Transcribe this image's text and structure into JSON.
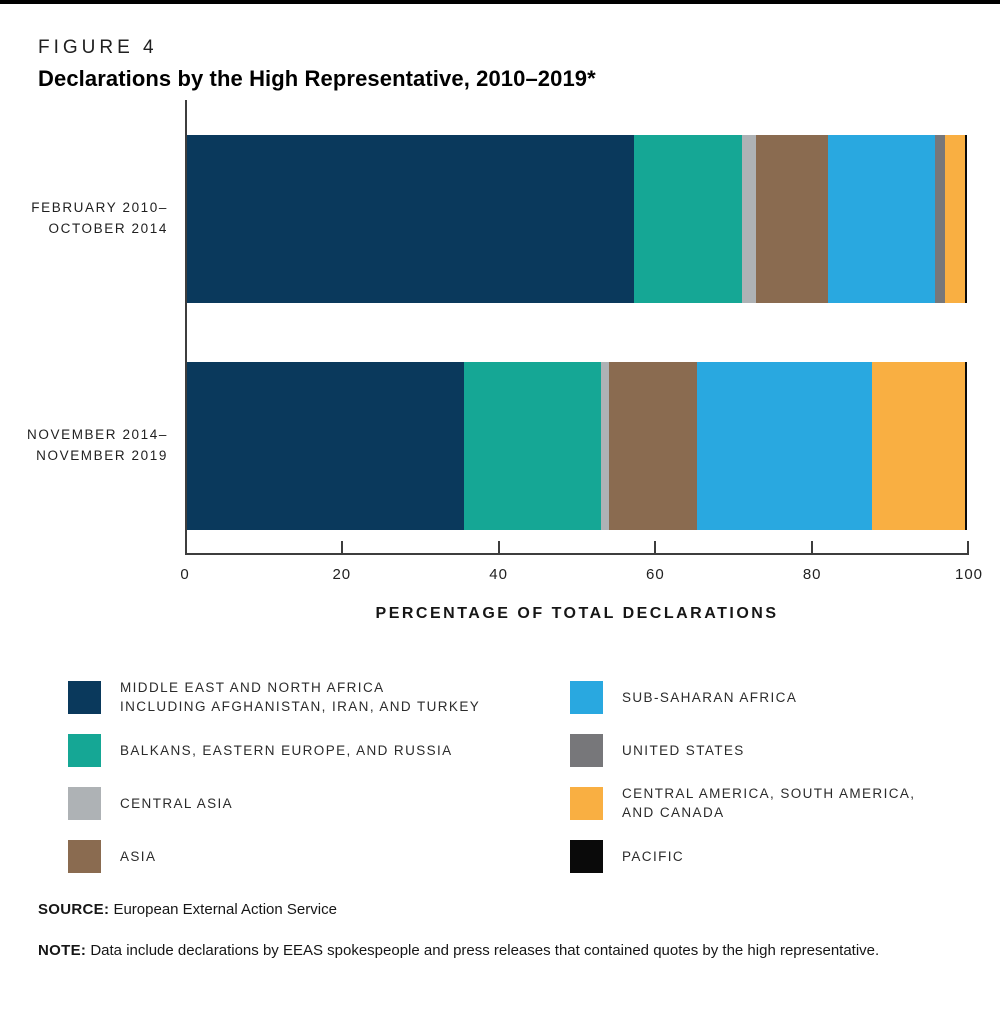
{
  "figure_label": "FIGURE 4",
  "title": "Declarations by the High Representative, 2010–2019*",
  "xaxis": {
    "label": "PERCENTAGE OF TOTAL DECLARATIONS",
    "ticks": [
      0,
      20,
      40,
      60,
      80,
      100
    ]
  },
  "chart_data": {
    "type": "bar",
    "orientation": "horizontal",
    "stacked": true,
    "unit": "percent of total declarations",
    "xlim": [
      0,
      100
    ],
    "grid": false,
    "legend_position": "bottom",
    "title": "Declarations by the High Representative, 2010–2019*",
    "xlabel": "PERCENTAGE OF TOTAL DECLARATIONS",
    "categories": [
      "FEBRUARY 2010–OCTOBER 2014",
      "NOVEMBER 2014–NOVEMBER 2019"
    ],
    "category_lines": [
      [
        "FEBRUARY 2010–",
        "OCTOBER 2014"
      ],
      [
        "NOVEMBER 2014–",
        "NOVEMBER 2019"
      ]
    ],
    "series": [
      {
        "name": "Middle East and North Africa including Afghanistan, Iran, and Turkey",
        "color": "#0A395C",
        "values": [
          57.3,
          35.5
        ]
      },
      {
        "name": "Balkans, Eastern Europe, and Russia",
        "color": "#15A795",
        "values": [
          13.9,
          17.6
        ]
      },
      {
        "name": "Central Asia",
        "color": "#AEB2B5",
        "values": [
          1.7,
          1.0
        ]
      },
      {
        "name": "Asia",
        "color": "#8A6B50",
        "values": [
          9.3,
          11.3
        ]
      },
      {
        "name": "Sub-Saharan Africa",
        "color": "#29A8E0",
        "values": [
          13.7,
          22.4
        ]
      },
      {
        "name": "United States",
        "color": "#77777A",
        "values": [
          1.3,
          0
        ]
      },
      {
        "name": "Central America, South America, and Canada",
        "color": "#F9AF42",
        "values": [
          2.5,
          11.9
        ]
      },
      {
        "name": "Pacific",
        "color": "#0A0A0A",
        "values": [
          0.3,
          0.3
        ]
      }
    ]
  },
  "legend": {
    "columns": [
      [
        {
          "lines": [
            "MIDDLE EAST AND NORTH AFRICA",
            "INCLUDING AFGHANISTAN, IRAN, AND TURKEY"
          ],
          "color": "#0A395C"
        },
        {
          "lines": [
            "BALKANS, EASTERN EUROPE, AND RUSSIA"
          ],
          "color": "#15A795"
        },
        {
          "lines": [
            "CENTRAL ASIA"
          ],
          "color": "#AEB2B5"
        },
        {
          "lines": [
            "ASIA"
          ],
          "color": "#8A6B50"
        }
      ],
      [
        {
          "lines": [
            "SUB-SAHARAN AFRICA"
          ],
          "color": "#29A8E0"
        },
        {
          "lines": [
            "UNITED STATES"
          ],
          "color": "#77777A"
        },
        {
          "lines": [
            "CENTRAL AMERICA, SOUTH AMERICA,",
            "AND CANADA"
          ],
          "color": "#F9AF42"
        },
        {
          "lines": [
            "PACIFIC"
          ],
          "color": "#0A0A0A"
        }
      ]
    ]
  },
  "source": {
    "label": "SOURCE:",
    "text": "European External Action Service"
  },
  "note": {
    "label": "NOTE:",
    "text": "Data include declarations by EEAS spokespeople and press releases that contained quotes by the high representative."
  }
}
